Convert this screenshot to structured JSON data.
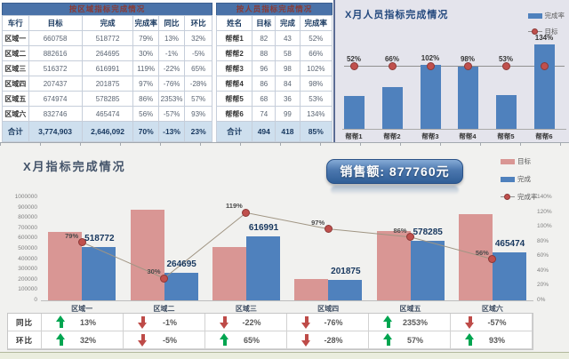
{
  "colors": {
    "header_band_bg": "#4A72A8",
    "header_band_text": "#8A3A34",
    "table_total_bg": "#CEDFEE",
    "target_pink": "#D99694",
    "done_blue": "#4F81BD",
    "rate_red": "#C0504D",
    "up_green": "#00A550",
    "down_red": "#BE4B48",
    "badge_blue": "#4B77AE"
  },
  "region_table": {
    "title": "按区域指标完成情况",
    "headers": [
      "车行",
      "目标",
      "完成",
      "完成率",
      "同比",
      "环比"
    ],
    "rows": [
      [
        "区域一",
        "660758",
        "518772",
        "79%",
        "13%",
        "32%"
      ],
      [
        "区域二",
        "882616",
        "264695",
        "30%",
        "-1%",
        "-5%"
      ],
      [
        "区域三",
        "516372",
        "616991",
        "119%",
        "-22%",
        "65%"
      ],
      [
        "区域四",
        "207437",
        "201875",
        "97%",
        "-76%",
        "-28%"
      ],
      [
        "区域五",
        "674974",
        "578285",
        "86%",
        "2353%",
        "57%"
      ],
      [
        "区域六",
        "832746",
        "465474",
        "56%",
        "-57%",
        "93%"
      ]
    ],
    "total": [
      "合计",
      "3,774,903",
      "2,646,092",
      "70%",
      "-13%",
      "23%"
    ]
  },
  "person_table": {
    "title": "按人员指标完成情况",
    "headers": [
      "姓名",
      "目标",
      "完成",
      "完成率"
    ],
    "rows": [
      [
        "帮帮1",
        "82",
        "43",
        "52%"
      ],
      [
        "帮帮2",
        "88",
        "58",
        "66%"
      ],
      [
        "帮帮3",
        "96",
        "98",
        "102%"
      ],
      [
        "帮帮4",
        "86",
        "84",
        "98%"
      ],
      [
        "帮帮5",
        "68",
        "36",
        "53%"
      ],
      [
        "帮帮6",
        "74",
        "99",
        "134%"
      ]
    ],
    "total": [
      "合计",
      "494",
      "418",
      "85%"
    ]
  },
  "chart_data": [
    {
      "type": "bar",
      "title": "X月人员指标完成情况",
      "categories": [
        "帮帮1",
        "帮帮2",
        "帮帮3",
        "帮帮4",
        "帮帮5",
        "帮帮6"
      ],
      "series": [
        {
          "name": "完成率",
          "type": "bar",
          "values": [
            52,
            66,
            102,
            98,
            53,
            134
          ],
          "labels": [
            "52%",
            "66%",
            "102%",
            "98%",
            "53%",
            "134%"
          ],
          "color": "#4F81BD"
        },
        {
          "name": "目标",
          "type": "line",
          "values": [
            100,
            100,
            100,
            100,
            100,
            100
          ],
          "color": "#C0504D"
        }
      ],
      "ylim": [
        0,
        140
      ],
      "grid": false,
      "legend_position": "top-right"
    },
    {
      "type": "bar+line",
      "title": "X月指标完成情况",
      "categories": [
        "区域一",
        "区域二",
        "区域三",
        "区域四",
        "区域五",
        "区域六"
      ],
      "series": [
        {
          "name": "目标",
          "type": "bar",
          "values": [
            660758,
            882616,
            516372,
            207437,
            674974,
            832746
          ],
          "color": "#D99694"
        },
        {
          "name": "完成",
          "type": "bar",
          "values": [
            518772,
            264695,
            616991,
            201875,
            578285,
            465474
          ],
          "labels": [
            "518772",
            "264695",
            "616991",
            "201875",
            "578285",
            "465474"
          ],
          "color": "#4F81BD"
        },
        {
          "name": "完成率",
          "type": "line",
          "axis": "right",
          "values": [
            79,
            30,
            119,
            97,
            86,
            56
          ],
          "labels": [
            "79%",
            "30%",
            "119%",
            "97%",
            "86%",
            "56%"
          ],
          "color": "#C0504D"
        }
      ],
      "left_axis": {
        "min": 0,
        "max": 1000000,
        "step": 100000
      },
      "right_axis": {
        "min": 0,
        "max": 140,
        "step": 20,
        "suffix": "%"
      },
      "grid": false,
      "legend_position": "right"
    }
  ],
  "sales_badge": {
    "label": "销售额: 877760元"
  },
  "comparison_table": {
    "rows": [
      {
        "label": "同比",
        "cells": [
          {
            "dir": "up",
            "value": "13%"
          },
          {
            "dir": "down",
            "value": "-1%"
          },
          {
            "dir": "down",
            "value": "-22%"
          },
          {
            "dir": "down",
            "value": "-76%"
          },
          {
            "dir": "up",
            "value": "2353%"
          },
          {
            "dir": "down",
            "value": "-57%"
          }
        ]
      },
      {
        "label": "环比",
        "cells": [
          {
            "dir": "up",
            "value": "32%"
          },
          {
            "dir": "down",
            "value": "-5%"
          },
          {
            "dir": "up",
            "value": "65%"
          },
          {
            "dir": "down",
            "value": "-28%"
          },
          {
            "dir": "up",
            "value": "57%"
          },
          {
            "dir": "up",
            "value": "93%"
          }
        ]
      }
    ]
  }
}
